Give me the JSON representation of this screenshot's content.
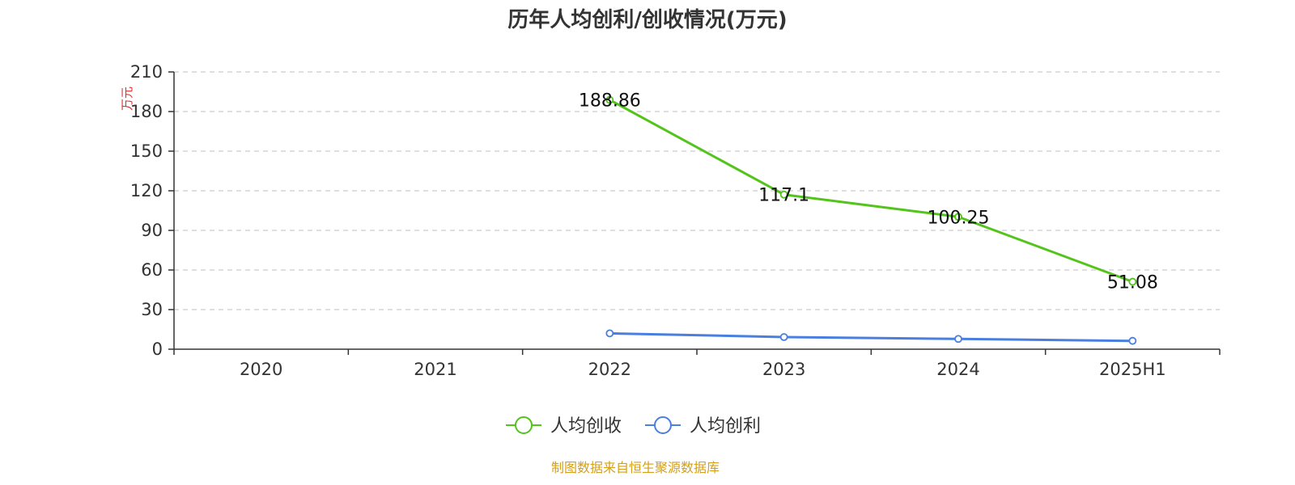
{
  "chart_data": {
    "type": "line",
    "title": "历年人均创利/创收情况(万元)",
    "ylabel": "万元",
    "categories": [
      "2020",
      "2021",
      "2022",
      "2023",
      "2024",
      "2025H1"
    ],
    "ylim": [
      0,
      210
    ],
    "yticks": [
      0,
      30,
      60,
      90,
      120,
      150,
      180,
      210
    ],
    "grid": true,
    "legend_position": "bottom-center",
    "series": [
      {
        "name": "人均创收",
        "color": "#52c41a",
        "values": [
          null,
          null,
          188.86,
          117.1,
          100.25,
          51.08
        ],
        "labels": [
          "",
          "",
          "188.86",
          "117.1",
          "100.25",
          "51.08"
        ]
      },
      {
        "name": "人均创利",
        "color": "#4a7fe0",
        "values": [
          null,
          null,
          12.0,
          9.2,
          7.8,
          6.3
        ]
      }
    ],
    "source": "制图数据来自恒生聚源数据库"
  },
  "colors": {
    "title": "#333333",
    "axis": "#333333",
    "grid": "#cccccc",
    "unit_label": "#e03030",
    "source": "#d4a017"
  }
}
